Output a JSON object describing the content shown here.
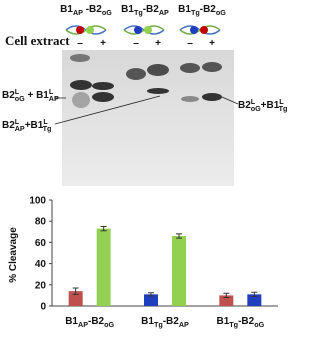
{
  "gel": {
    "constructs": [
      [
        {
          "text": "B1"
        },
        {
          "sub": "AP"
        },
        {
          "text": " -B2"
        },
        {
          "sub": "oG"
        }
      ],
      [
        {
          "text": "B1"
        },
        {
          "sub": "Tg"
        },
        {
          "text": "-B2"
        },
        {
          "sub": "AP"
        }
      ],
      [
        {
          "text": "B1"
        },
        {
          "sub": "Tg"
        },
        {
          "text": "-B2"
        },
        {
          "sub": "oG"
        }
      ]
    ],
    "cell_extract": "Cell extract",
    "lanes": [
      "–",
      "+",
      "–",
      "+",
      "–",
      "+"
    ],
    "band_labels": [
      [
        {
          "text": "B2"
        },
        {
          "sup": "L"
        },
        {
          "sub": "oG"
        },
        {
          "text": " + B1"
        },
        {
          "sup": "L"
        },
        {
          "sub": "AP"
        }
      ],
      [
        {
          "text": "B2"
        },
        {
          "sup": "L"
        },
        {
          "sub": "AP"
        },
        {
          "text": "+B1"
        },
        {
          "sup": "L"
        },
        {
          "sub": "Tg"
        }
      ],
      [
        {
          "text": "B2"
        },
        {
          "sup": "L"
        },
        {
          "sub": "oG"
        },
        {
          "text": "+B1"
        },
        {
          "sup": "L"
        },
        {
          "sub": "Tg"
        }
      ]
    ]
  },
  "chart_data": {
    "type": "bar",
    "y_label": "% Cleavage",
    "categories": [
      [
        {
          "text": "B1"
        },
        {
          "sub": "AP"
        },
        {
          "text": "-B2"
        },
        {
          "sub": "oG"
        }
      ],
      [
        {
          "text": "B1"
        },
        {
          "sub": "Tg"
        },
        {
          "text": "-B2"
        },
        {
          "sub": "AP"
        }
      ],
      [
        {
          "text": "B1"
        },
        {
          "sub": "Tg"
        },
        {
          "text": "-B2"
        },
        {
          "sub": "oG"
        }
      ]
    ],
    "series": [
      {
        "values": [
          14,
          11,
          10
        ],
        "errors": [
          3,
          1.5,
          2
        ],
        "colors": [
          "#c0504d",
          "#1f3fbf",
          "#c0504d"
        ]
      },
      {
        "values": [
          73,
          66,
          11
        ],
        "errors": [
          2,
          2,
          2
        ],
        "colors": [
          "#92d050",
          "#92d050",
          "#1f3fbf"
        ]
      }
    ],
    "ylim": [
      0,
      100
    ],
    "yticks": [
      0,
      20,
      40,
      60,
      80,
      100
    ]
  }
}
